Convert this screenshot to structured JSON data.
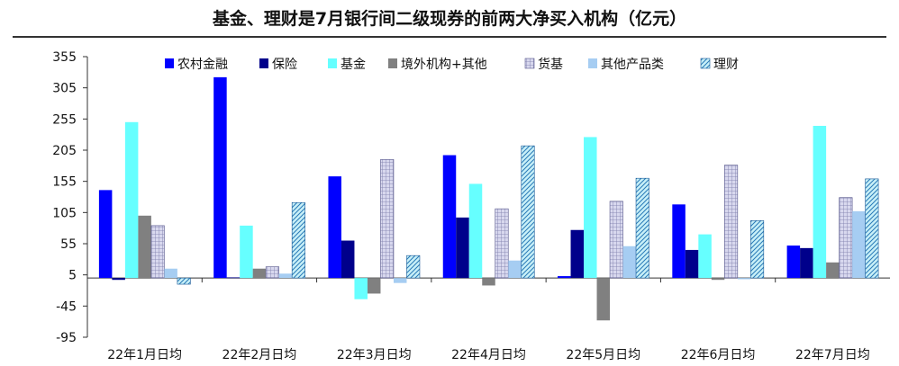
{
  "chart_data": {
    "type": "bar",
    "title": "基金、理财是7月银行间二级现券的前两大净买入机构（亿元）",
    "categories": [
      "22年1月日均",
      "22年2月日均",
      "22年3月日均",
      "22年4月日均",
      "22年5月日均",
      "22年6月日均",
      "22年7月日均"
    ],
    "yticks": [
      "355",
      "305",
      "255",
      "205",
      "155",
      "105",
      "55",
      "5",
      "-45",
      "-95"
    ],
    "ylim": [
      -95,
      355
    ],
    "legend_position": "top",
    "series": [
      {
        "name": "农村金融",
        "color": "#0000ff",
        "pattern": "solid",
        "values": [
          141,
          322,
          163,
          197,
          3,
          118,
          52
        ]
      },
      {
        "name": "保险",
        "color": "#00008b",
        "pattern": "solid",
        "values": [
          -3,
          1,
          60,
          97,
          77,
          45,
          48
        ]
      },
      {
        "name": "基金",
        "color": "#66ffff",
        "pattern": "solid",
        "values": [
          250,
          84,
          -34,
          151,
          226,
          70,
          244
        ]
      },
      {
        "name": "境外机构+其他",
        "color": "#808080",
        "pattern": "solid",
        "values": [
          100,
          15,
          -25,
          -12,
          -68,
          -3,
          25
        ]
      },
      {
        "name": "货基",
        "color": "#c8c8e6",
        "pattern": "cross",
        "values": [
          84,
          18,
          190,
          111,
          123,
          181,
          129
        ]
      },
      {
        "name": "其他产品类",
        "color": "#a6cdf2",
        "pattern": "solid",
        "values": [
          15,
          7,
          -8,
          28,
          51,
          -2,
          107
        ]
      },
      {
        "name": "理财",
        "color": "#aee7f2",
        "pattern": "diagonal",
        "values": [
          -10,
          121,
          36,
          212,
          160,
          92,
          159
        ]
      }
    ]
  }
}
